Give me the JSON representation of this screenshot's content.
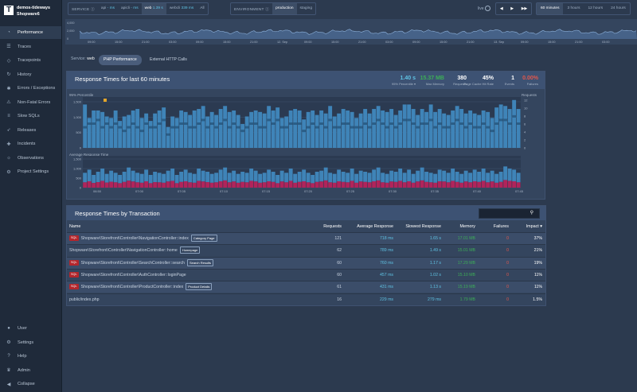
{
  "sidebar": {
    "org": "demos-tideways",
    "project": "Shopware6",
    "items": [
      {
        "label": "Performance",
        "icon": "gauge-icon",
        "active": true
      },
      {
        "label": "Traces",
        "icon": "traces-icon"
      },
      {
        "label": "Tracepoints",
        "icon": "tracepoint-icon"
      },
      {
        "label": "History",
        "icon": "history-icon"
      },
      {
        "label": "Errors / Exceptions",
        "icon": "bug-icon"
      },
      {
        "label": "Non-Fatal Errors",
        "icon": "warning-icon"
      },
      {
        "label": "Slow SQLs",
        "icon": "database-icon"
      },
      {
        "label": "Releases",
        "icon": "rocket-icon"
      },
      {
        "label": "Incidents",
        "icon": "incident-icon"
      },
      {
        "label": "Observations",
        "icon": "bulb-icon"
      },
      {
        "label": "Project Settings",
        "icon": "gear-icon"
      }
    ],
    "bottom": [
      {
        "label": "User",
        "icon": "user-icon"
      },
      {
        "label": "Settings",
        "icon": "gear-icon"
      },
      {
        "label": "Help",
        "icon": "help-icon"
      },
      {
        "label": "Admin",
        "icon": "admin-icon"
      },
      {
        "label": "Collapse",
        "icon": "collapse-icon"
      }
    ]
  },
  "topbar": {
    "service_label": "SERVICE",
    "services": [
      {
        "name": "api",
        "value": "- ms"
      },
      {
        "name": "apicli",
        "value": "- ms"
      },
      {
        "name": "web",
        "value": "1.39 s",
        "selected": true
      },
      {
        "name": "webcli",
        "value": "339 ms"
      },
      {
        "name": "All",
        "value": ""
      }
    ],
    "env_label": "ENVIRONMENT",
    "envs": [
      {
        "name": "production",
        "selected": true
      },
      {
        "name": "staging"
      }
    ],
    "live_label": "live",
    "ranges": [
      {
        "name": "60 minutes",
        "selected": true
      },
      {
        "name": "3 hours"
      },
      {
        "name": "12 hours"
      },
      {
        "name": "24 hours"
      }
    ]
  },
  "timeline": {
    "ylabels": [
      "4,000",
      "2,000",
      "0"
    ],
    "xlabels": [
      "09:00",
      "15:00",
      "21:00",
      "03:00",
      "09:00",
      "15:00",
      "21:00",
      "12. Sep",
      "09:00",
      "15:00",
      "21:00",
      "03:00",
      "09:00",
      "15:00",
      "21:00",
      "13. Sep",
      "09:00",
      "15:00",
      "21:00",
      "03:00"
    ]
  },
  "service_line": {
    "label": "Service:",
    "value": "web"
  },
  "tabs": [
    {
      "label": "PHP Performance",
      "selected": true
    },
    {
      "label": "External HTTP Calls"
    }
  ],
  "response_panel": {
    "title": "Response Times for last 60 minutes",
    "stats": [
      {
        "value": "1.40 s",
        "label": "95% Percentile ▾",
        "color": "#5fc3e4"
      },
      {
        "value": "15.37 MB",
        "label": "Max Memory",
        "color": "#3cae57"
      },
      {
        "value": "380",
        "label": "Requests",
        "color": "#ffffff"
      },
      {
        "value": "45%",
        "label": "Page Cache Hit Rate",
        "color": "#ffffff"
      },
      {
        "value": "1",
        "label": "Events",
        "color": "#ffffff"
      },
      {
        "value": "0.00%",
        "label": "Failures",
        "color": "#e2574c"
      }
    ],
    "percentile_label": "95% Percentile",
    "requests_label": "Requests",
    "avg_label": "Average Response Time",
    "y_top": [
      "1,500",
      "1,000",
      "500",
      "0"
    ],
    "y_right": [
      "12",
      "10",
      "8",
      "6",
      "4",
      "2",
      "0"
    ],
    "y_bottom": [
      "1,500",
      "1,000",
      "500",
      "0"
    ],
    "x_labels": [
      "06:50",
      "07:00",
      "07:05",
      "07:10",
      "07:15",
      "07:20",
      "07:25",
      "07:30",
      "07:35",
      "07:40",
      "07:45"
    ]
  },
  "transactions": {
    "title": "Response Times by Transaction",
    "search_icon": "search-icon",
    "columns": [
      "Name",
      "Requests",
      "Average Response",
      "Slowest Response",
      "Memory",
      "Failures",
      "Impact ▾"
    ],
    "rows": [
      {
        "sql": "SQL",
        "name": "Shopware\\Storefront\\Controller\\NavigationController::index",
        "tag": "Category Page",
        "requests": "121",
        "avg": "718 ms",
        "slow": "1.65 s",
        "mem": "17.01 MB",
        "fail": "0",
        "impact": "37%"
      },
      {
        "sql": "",
        "name": "Shopware\\Storefront\\Controller\\NavigationController::home",
        "tag": "Homepage",
        "requests": "62",
        "avg": "789 ms",
        "slow": "1.49 s",
        "mem": "15.01 MB",
        "fail": "0",
        "impact": "21%"
      },
      {
        "sql": "SQL",
        "name": "Shopware\\Storefront\\Controller\\SearchController::search",
        "tag": "Search Results",
        "requests": "60",
        "avg": "760 ms",
        "slow": "1.17 s",
        "mem": "17.29 MB",
        "fail": "0",
        "impact": "19%"
      },
      {
        "sql": "SQL",
        "name": "Shopware\\Storefront\\Controller\\AuthController::loginPage",
        "tag": "",
        "requests": "60",
        "avg": "457 ms",
        "slow": "1.02 s",
        "mem": "15.10 MB",
        "fail": "0",
        "impact": "11%"
      },
      {
        "sql": "SQL",
        "name": "Shopware\\Storefront\\Controller\\ProductController::index",
        "tag": "Product Details",
        "requests": "61",
        "avg": "431 ms",
        "slow": "1.13 s",
        "mem": "15.19 MB",
        "fail": "0",
        "impact": "11%"
      },
      {
        "sql": "",
        "name": "public/index.php",
        "tag": "",
        "requests": "16",
        "avg": "229 ms",
        "slow": "279 ms",
        "mem": "1.79 MB",
        "fail": "0",
        "impact": "1.5%"
      }
    ]
  },
  "chart_data": [
    {
      "type": "bar",
      "title": "95% Percentile",
      "ylim": [
        0,
        1700
      ],
      "values": [
        1450,
        1000,
        1250,
        1250,
        1200,
        1050,
        1000,
        1250,
        900,
        1050,
        1100,
        1250,
        1300,
        1000,
        1150,
        900,
        1150,
        1250,
        1350,
        700,
        1050,
        1000,
        1250,
        1200,
        1100,
        1250,
        1300,
        1400,
        1050,
        1200,
        1100,
        1300,
        1400,
        1200,
        1250,
        1100,
        800,
        1050,
        1200,
        1250,
        1200,
        1150,
        1400,
        1250,
        1350,
        1000,
        1050,
        1250,
        1300,
        1250,
        950,
        1200,
        1250,
        1100,
        1250,
        1150,
        1400,
        1050,
        1150,
        1300,
        1250,
        1200,
        1000,
        1150,
        1300,
        1150,
        1300,
        1400,
        1250,
        1200,
        1300,
        1100,
        1250,
        1450,
        1450,
        1300,
        1100,
        1300,
        1200,
        1450,
        1200,
        1300,
        1150,
        1100,
        1250,
        1400,
        1300,
        1150,
        1250,
        1150,
        1100,
        1250,
        1200,
        1000,
        1350,
        1450,
        1400,
        1300,
        1600,
        1300
      ],
      "requests": [
        6,
        7,
        7,
        8,
        6,
        7,
        6,
        7,
        6,
        5,
        6,
        7,
        6,
        5,
        7,
        6,
        6,
        7,
        8,
        4,
        6,
        6,
        7,
        7,
        6,
        6,
        7,
        8,
        6,
        7,
        6,
        7,
        8,
        6,
        7,
        6,
        5,
        6,
        7,
        7,
        6,
        6,
        8,
        7,
        8,
        6,
        6,
        7,
        7,
        7,
        5,
        6,
        7,
        6,
        7,
        6,
        8,
        6,
        6,
        7,
        7,
        6,
        6,
        6,
        7,
        6,
        7,
        8,
        7,
        6,
        7,
        6,
        7,
        8,
        8,
        7,
        6,
        7,
        7,
        8,
        6,
        7,
        6,
        6,
        7,
        8,
        7,
        6,
        7,
        6,
        6,
        7,
        6,
        5,
        7,
        8,
        8,
        7,
        9,
        7
      ]
    },
    {
      "type": "bar",
      "title": "Average Response Time",
      "ylim": [
        0,
        1500
      ],
      "values": [
        700,
        850,
        600,
        750,
        900,
        650,
        800,
        700,
        600,
        750,
        950,
        800,
        700,
        650,
        850,
        600,
        750,
        700,
        650,
        800,
        900,
        600,
        750,
        850,
        700,
        650,
        900,
        800,
        750,
        650,
        700,
        850,
        950,
        700,
        800,
        650,
        750,
        700,
        900,
        800,
        650,
        700,
        850,
        750,
        600,
        800,
        700,
        900,
        650,
        750,
        850,
        700,
        600,
        750,
        800,
        950,
        700,
        650,
        850,
        750,
        700,
        900,
        650,
        800,
        750,
        700,
        850,
        950,
        700,
        650,
        800,
        750,
        900,
        700,
        850,
        650,
        800,
        950,
        750,
        700,
        650,
        850,
        800,
        700,
        900,
        750,
        650,
        800,
        700,
        850,
        750,
        900,
        700,
        800,
        650,
        750,
        1000,
        900,
        850,
        700
      ],
      "sql": [
        250,
        300,
        220,
        260,
        320,
        240,
        280,
        250,
        210,
        270,
        330,
        290,
        250,
        230,
        300,
        210,
        260,
        250,
        230,
        290,
        320,
        210,
        270,
        300,
        250,
        230,
        320,
        290,
        260,
        230,
        250,
        300,
        340,
        250,
        290,
        230,
        270,
        250,
        320,
        290,
        230,
        250,
        300,
        270,
        210,
        290,
        250,
        320,
        230,
        270,
        300,
        250,
        210,
        270,
        290,
        340,
        250,
        230,
        300,
        270,
        250,
        320,
        230,
        290,
        270,
        250,
        300,
        340,
        250,
        230,
        290,
        270,
        320,
        250,
        300,
        230,
        290,
        340,
        270,
        250,
        230,
        300,
        290,
        250,
        320,
        270,
        230,
        290,
        250,
        300,
        270,
        320,
        250,
        290,
        230,
        270,
        360,
        320,
        300,
        250
      ]
    }
  ]
}
